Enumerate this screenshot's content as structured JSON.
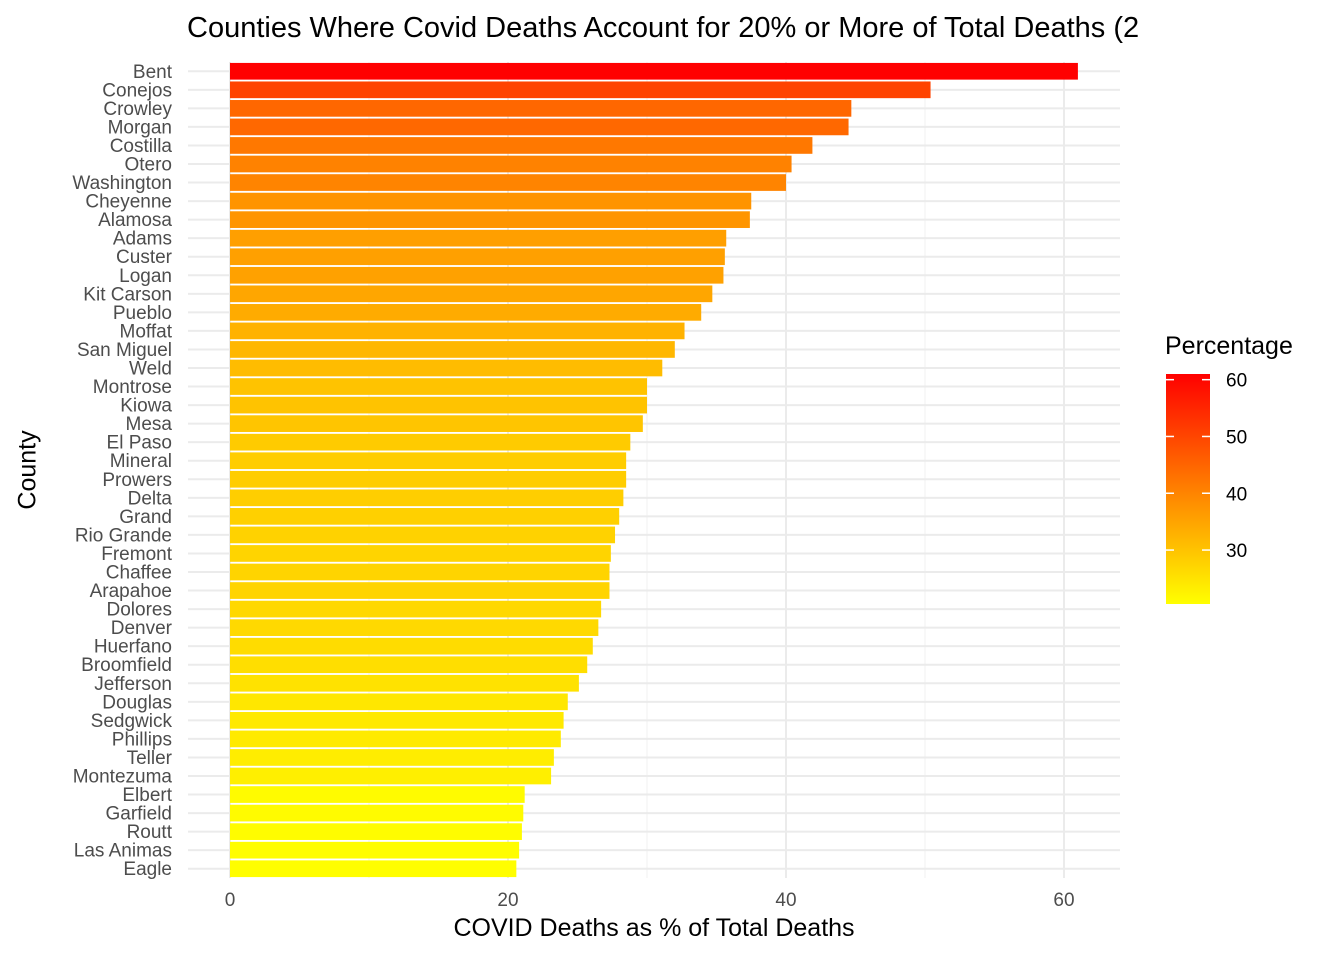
{
  "chart_data": {
    "type": "bar",
    "orientation": "horizontal",
    "title": "Counties Where Covid Deaths Account for 20% or More of Total Deaths (2",
    "xlabel": "COVID Deaths as % of Total Deaths",
    "ylabel": "County",
    "xlim": [
      0,
      64
    ],
    "xticks": [
      0,
      20,
      40,
      60
    ],
    "grid": true,
    "legend": {
      "title": "Percentage",
      "placement": "right",
      "ticks": [
        30,
        40,
        50,
        60
      ],
      "range": [
        20.5,
        61
      ],
      "color_low": "#FFFF00",
      "color_high": "#FF0000"
    },
    "categories": [
      "Bent",
      "Conejos",
      "Crowley",
      "Morgan",
      "Costilla",
      "Otero",
      "Washington",
      "Cheyenne",
      "Alamosa",
      "Adams",
      "Custer",
      "Logan",
      "Kit Carson",
      "Pueblo",
      "Moffat",
      "San Miguel",
      "Weld",
      "Montrose",
      "Kiowa",
      "Mesa",
      "El Paso",
      "Mineral",
      "Prowers",
      "Delta",
      "Grand",
      "Rio Grande",
      "Fremont",
      "Chaffee",
      "Arapahoe",
      "Dolores",
      "Denver",
      "Huerfano",
      "Broomfield",
      "Jefferson",
      "Douglas",
      "Sedgwick",
      "Phillips",
      "Teller",
      "Montezuma",
      "Elbert",
      "Garfield",
      "Routt",
      "Las Animas",
      "Eagle"
    ],
    "values": [
      61.0,
      50.4,
      44.7,
      44.5,
      41.9,
      40.4,
      40.0,
      37.5,
      37.4,
      35.7,
      35.6,
      35.5,
      34.7,
      33.9,
      32.7,
      32.0,
      31.1,
      30.0,
      30.0,
      29.7,
      28.8,
      28.5,
      28.5,
      28.3,
      28.0,
      27.7,
      27.4,
      27.3,
      27.3,
      26.7,
      26.5,
      26.1,
      25.7,
      25.1,
      24.3,
      24.0,
      23.8,
      23.3,
      23.1,
      21.2,
      21.1,
      21.0,
      20.8,
      20.6
    ]
  }
}
